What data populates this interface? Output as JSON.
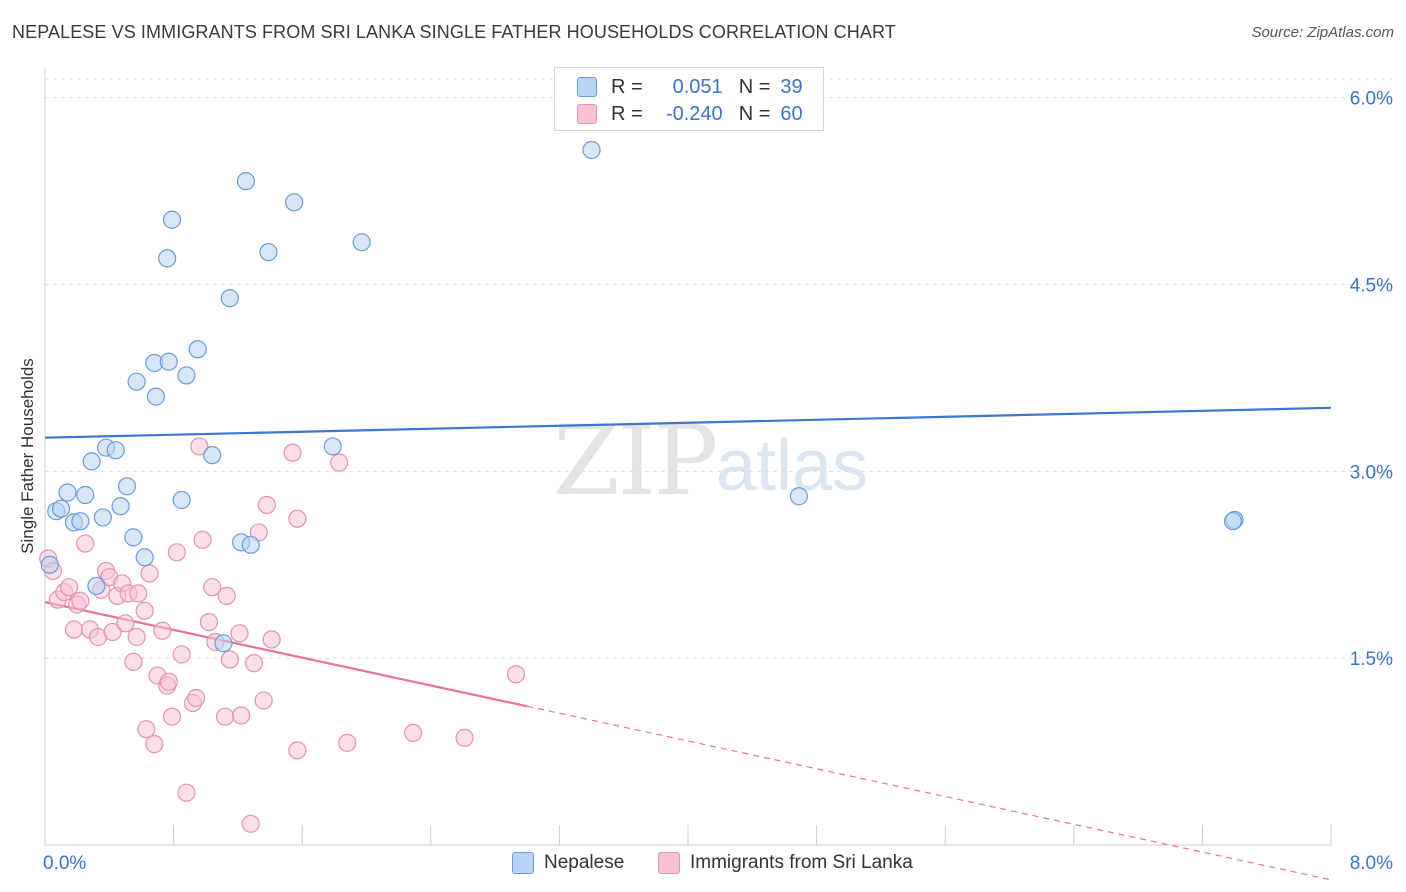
{
  "title": "NEPALESE VS IMMIGRANTS FROM SRI LANKA SINGLE FATHER HOUSEHOLDS CORRELATION CHART",
  "source": "Source: ZipAtlas.com",
  "watermark": {
    "zip": "ZIP",
    "atlas": "atlas"
  },
  "legend": {
    "r_label": "R =",
    "n_label": "N =",
    "series": [
      {
        "r": "0.051",
        "n": "39"
      },
      {
        "r": "-0.240",
        "n": "60"
      }
    ]
  },
  "colors": {
    "blue_fill": "#b8d3f3",
    "blue_stroke": "#6c9bd8",
    "blue_line": "#3a77d0",
    "pink_fill": "#f7c3d3",
    "pink_stroke": "#e593b0",
    "pink_line": "#e8729a",
    "axis_label": "#3a73c6"
  },
  "chart_data": {
    "type": "scatter",
    "title": "NEPALESE VS IMMIGRANTS FROM SRI LANKA SINGLE FATHER HOUSEHOLDS CORRELATION CHART",
    "xlabel": "",
    "ylabel": "Single Father Households",
    "xlim": [
      0,
      8
    ],
    "ylim": [
      0,
      6.15
    ],
    "x_tick_labels": [
      "0.0%",
      "8.0%"
    ],
    "y_ticks": [
      1.5,
      3.0,
      4.5,
      6.0
    ],
    "y_tick_labels": [
      "1.5%",
      "3.0%",
      "4.5%",
      "6.0%"
    ],
    "grid": true,
    "series": [
      {
        "name": "Nepalese",
        "color": "blue",
        "trend": {
          "x": [
            0,
            8
          ],
          "y": [
            3.27,
            3.51
          ],
          "solid_to": 8
        },
        "points": [
          {
            "x": 0.03,
            "y": 2.25
          },
          {
            "x": 0.07,
            "y": 2.68
          },
          {
            "x": 0.1,
            "y": 2.7
          },
          {
            "x": 0.14,
            "y": 2.83
          },
          {
            "x": 0.18,
            "y": 2.59
          },
          {
            "x": 0.22,
            "y": 2.6
          },
          {
            "x": 0.25,
            "y": 2.81
          },
          {
            "x": 0.29,
            "y": 3.08
          },
          {
            "x": 0.32,
            "y": 2.08
          },
          {
            "x": 0.36,
            "y": 2.63
          },
          {
            "x": 0.38,
            "y": 3.19
          },
          {
            "x": 0.44,
            "y": 3.17
          },
          {
            "x": 0.47,
            "y": 2.72
          },
          {
            "x": 0.51,
            "y": 2.88
          },
          {
            "x": 0.55,
            "y": 2.47
          },
          {
            "x": 0.57,
            "y": 3.72
          },
          {
            "x": 0.62,
            "y": 2.31
          },
          {
            "x": 0.68,
            "y": 3.87
          },
          {
            "x": 0.69,
            "y": 3.6
          },
          {
            "x": 0.76,
            "y": 4.71
          },
          {
            "x": 0.77,
            "y": 3.88
          },
          {
            "x": 0.79,
            "y": 5.02
          },
          {
            "x": 0.85,
            "y": 2.77
          },
          {
            "x": 0.88,
            "y": 3.77
          },
          {
            "x": 0.95,
            "y": 3.98
          },
          {
            "x": 1.04,
            "y": 3.13
          },
          {
            "x": 1.11,
            "y": 1.62
          },
          {
            "x": 1.15,
            "y": 4.39
          },
          {
            "x": 1.22,
            "y": 2.43
          },
          {
            "x": 1.28,
            "y": 2.41
          },
          {
            "x": 1.39,
            "y": 4.76
          },
          {
            "x": 1.25,
            "y": 5.33
          },
          {
            "x": 1.55,
            "y": 5.16
          },
          {
            "x": 1.79,
            "y": 3.2
          },
          {
            "x": 1.97,
            "y": 4.84
          },
          {
            "x": 3.4,
            "y": 5.58
          },
          {
            "x": 4.69,
            "y": 2.8
          },
          {
            "x": 7.4,
            "y": 2.61
          },
          {
            "x": 7.39,
            "y": 2.6
          }
        ]
      },
      {
        "name": "Immigrants from Sri Lanka",
        "color": "pink",
        "trend": {
          "x": [
            0,
            8
          ],
          "y": [
            1.95,
            -0.28
          ],
          "solid_to": 3.0
        },
        "points": [
          {
            "x": 0.02,
            "y": 2.3
          },
          {
            "x": 0.05,
            "y": 2.2
          },
          {
            "x": 0.08,
            "y": 1.97
          },
          {
            "x": 0.12,
            "y": 2.03
          },
          {
            "x": 0.15,
            "y": 2.07
          },
          {
            "x": 0.18,
            "y": 1.73
          },
          {
            "x": 0.2,
            "y": 1.93
          },
          {
            "x": 0.22,
            "y": 1.96
          },
          {
            "x": 0.25,
            "y": 2.42
          },
          {
            "x": 0.28,
            "y": 1.73
          },
          {
            "x": 0.33,
            "y": 1.67
          },
          {
            "x": 0.35,
            "y": 2.05
          },
          {
            "x": 0.38,
            "y": 2.2
          },
          {
            "x": 0.4,
            "y": 2.15
          },
          {
            "x": 0.42,
            "y": 1.71
          },
          {
            "x": 0.45,
            "y": 2.0
          },
          {
            "x": 0.48,
            "y": 2.1
          },
          {
            "x": 0.5,
            "y": 1.78
          },
          {
            "x": 0.52,
            "y": 2.02
          },
          {
            "x": 0.55,
            "y": 1.47
          },
          {
            "x": 0.57,
            "y": 1.67
          },
          {
            "x": 0.58,
            "y": 2.02
          },
          {
            "x": 0.62,
            "y": 1.88
          },
          {
            "x": 0.63,
            "y": 0.93
          },
          {
            "x": 0.65,
            "y": 2.18
          },
          {
            "x": 0.68,
            "y": 0.81
          },
          {
            "x": 0.7,
            "y": 1.36
          },
          {
            "x": 0.73,
            "y": 1.72
          },
          {
            "x": 0.76,
            "y": 1.28
          },
          {
            "x": 0.77,
            "y": 1.31
          },
          {
            "x": 0.79,
            "y": 1.03
          },
          {
            "x": 0.82,
            "y": 2.35
          },
          {
            "x": 0.85,
            "y": 1.53
          },
          {
            "x": 0.88,
            "y": 0.42
          },
          {
            "x": 0.92,
            "y": 1.14
          },
          {
            "x": 0.94,
            "y": 1.18
          },
          {
            "x": 0.96,
            "y": 3.2
          },
          {
            "x": 0.98,
            "y": 2.45
          },
          {
            "x": 1.02,
            "y": 1.79
          },
          {
            "x": 1.04,
            "y": 2.07
          },
          {
            "x": 1.06,
            "y": 1.63
          },
          {
            "x": 1.12,
            "y": 1.03
          },
          {
            "x": 1.13,
            "y": 2.0
          },
          {
            "x": 1.15,
            "y": 1.49
          },
          {
            "x": 1.21,
            "y": 1.7
          },
          {
            "x": 1.22,
            "y": 1.04
          },
          {
            "x": 1.28,
            "y": 0.17
          },
          {
            "x": 1.3,
            "y": 1.46
          },
          {
            "x": 1.33,
            "y": 2.51
          },
          {
            "x": 1.36,
            "y": 1.16
          },
          {
            "x": 1.38,
            "y": 2.73
          },
          {
            "x": 1.41,
            "y": 1.65
          },
          {
            "x": 1.54,
            "y": 3.15
          },
          {
            "x": 1.57,
            "y": 2.62
          },
          {
            "x": 1.57,
            "y": 0.76
          },
          {
            "x": 1.83,
            "y": 3.07
          },
          {
            "x": 1.88,
            "y": 0.82
          },
          {
            "x": 2.29,
            "y": 0.9
          },
          {
            "x": 2.61,
            "y": 0.86
          },
          {
            "x": 2.93,
            "y": 1.37
          }
        ]
      }
    ]
  },
  "bottom_legend": [
    "Nepalese",
    "Immigrants from Sri Lanka"
  ]
}
